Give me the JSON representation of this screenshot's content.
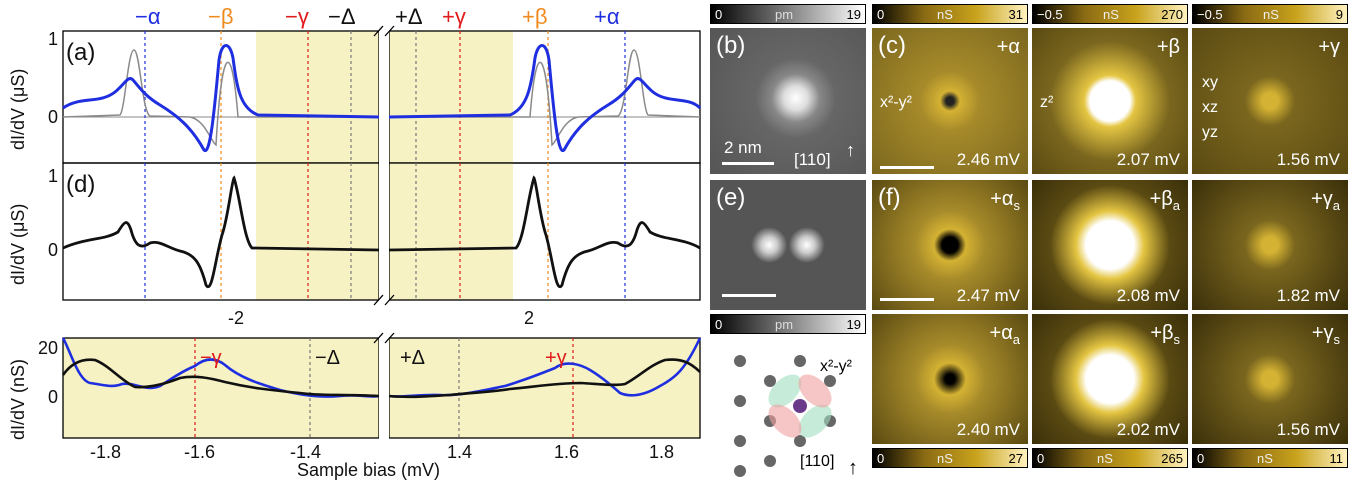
{
  "left": {
    "top_labels": [
      {
        "text": "−α",
        "color": "#1f2fe0"
      },
      {
        "text": "−β",
        "color": "#f08a1c"
      },
      {
        "text": "−γ",
        "color": "#e11b1b"
      },
      {
        "text": "−Δ",
        "color": "#111111"
      },
      {
        "text": "+Δ",
        "color": "#111111"
      },
      {
        "text": "+γ",
        "color": "#e11b1b"
      },
      {
        "text": "+β",
        "color": "#f08a1c"
      },
      {
        "text": "+α",
        "color": "#1f2fe0"
      }
    ],
    "panel_a_label": "(a)",
    "panel_d_label": "(d)",
    "ylabel_us": "dI/dV (μS)",
    "ylabel_ns": "dI/dV (nS)",
    "xlabel": "Sample bias (mV)",
    "mid_ticks": [
      "-2",
      "2"
    ],
    "ticks_a": [
      "1",
      "0"
    ],
    "ticks_d": [
      "1",
      "0"
    ],
    "ticks_bottom_y": [
      "20",
      "0"
    ],
    "bottom_x_left": [
      "-1.8",
      "-1.6",
      "-1.4"
    ],
    "bottom_x_right": [
      "1.4",
      "1.6",
      "1.8"
    ],
    "bottom_gap_labels": [
      {
        "text": "−γ",
        "color": "#e11b1b"
      },
      {
        "text": "−Δ",
        "color": "#111111"
      },
      {
        "text": "+Δ",
        "color": "#111111"
      },
      {
        "text": "+γ",
        "color": "#e11b1b"
      }
    ],
    "arrow_tags": {
      "a": "a",
      "s": "s"
    }
  },
  "maps": {
    "b": {
      "label": "(b)",
      "scale": "2 nm",
      "dir": "[110]"
    },
    "e": {
      "label": "(e)"
    },
    "c_label": "(c)",
    "f_label": "(f)",
    "row1": [
      {
        "sym": "+α",
        "val": "2.46 mV",
        "orbital": "x²-y²"
      },
      {
        "sym": "+β",
        "val": "2.07 mV",
        "orbital": "z²"
      },
      {
        "sym": "+γ",
        "val": "1.56 mV",
        "orbital": "xy\nxz\nyz"
      }
    ],
    "row2": [
      {
        "sym": "+α",
        "sub": "s",
        "val": "2.47 mV"
      },
      {
        "sym": "+β",
        "sub": "a",
        "val": "2.08 mV"
      },
      {
        "sym": "+γ",
        "sub": "a",
        "val": "1.82 mV"
      }
    ],
    "row3": [
      {
        "sym": "+α",
        "sub": "a",
        "val": "2.40 mV"
      },
      {
        "sym": "+β",
        "sub": "s",
        "val": "2.02 mV"
      },
      {
        "sym": "+γ",
        "sub": "s",
        "val": "1.56 mV"
      }
    ],
    "lattice": {
      "orbital": "x²-y²",
      "dir": "[110]"
    },
    "colorbars": {
      "b_top": {
        "min": "0",
        "unit": "pm",
        "max": "19"
      },
      "c1": {
        "min": "0",
        "unit": "nS",
        "max": "31"
      },
      "c2": {
        "min": "−0.5",
        "unit": "nS",
        "max": "270"
      },
      "c3": {
        "min": "−0.5",
        "unit": "nS",
        "max": "9"
      },
      "lat": {
        "min": "0",
        "unit": "pm",
        "max": "19"
      },
      "f1": {
        "min": "0",
        "unit": "nS",
        "max": "27"
      },
      "f2": {
        "min": "0",
        "unit": "nS",
        "max": "265"
      },
      "f3": {
        "min": "0",
        "unit": "nS",
        "max": "11"
      }
    }
  },
  "colors": {
    "blue": "#1f2fe0",
    "orange": "#f08a1c",
    "red": "#e11b1b",
    "gap_fill": "#f6f2c3",
    "gold": "#c8a21c"
  }
}
